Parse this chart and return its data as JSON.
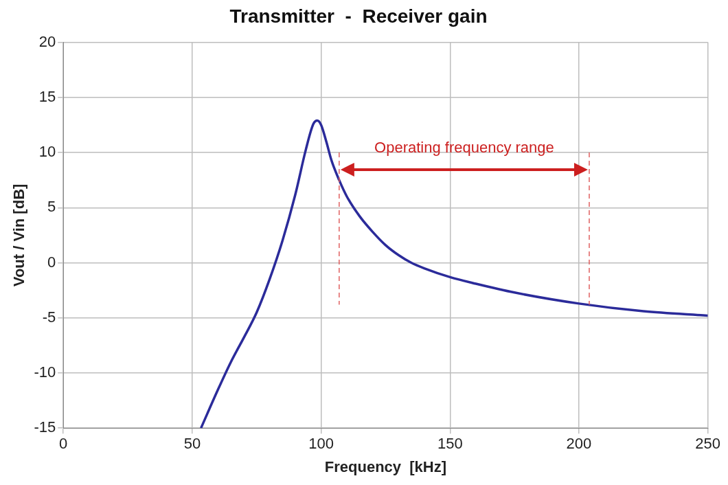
{
  "chart_data": {
    "type": "line",
    "title": "Transmitter  -  Receiver gain",
    "xlabel": "Frequency  [kHz]",
    "ylabel": "Vout / Vin [dB]",
    "series": [
      {
        "color": "#2b2b9a",
        "x": [
          53.4,
          60,
          65,
          70,
          75,
          80,
          85,
          90,
          94,
          97,
          98.5,
          100,
          102,
          104,
          107,
          110,
          115,
          120,
          125,
          130,
          135,
          140,
          150,
          160,
          175,
          200,
          225,
          250
        ],
        "values": [
          -15,
          -11.5,
          -9,
          -6.8,
          -4.5,
          -1.5,
          2,
          6.2,
          10.2,
          12.6,
          12.9,
          12.5,
          11,
          9.3,
          7.5,
          6,
          4.2,
          2.8,
          1.6,
          0.7,
          0,
          -0.5,
          -1.3,
          -1.9,
          -2.7,
          -3.7,
          -4.4,
          -4.8
        ]
      }
    ],
    "xlim": [
      0,
      250
    ],
    "xticks": [
      0,
      50,
      100,
      150,
      200,
      250
    ],
    "ylim": [
      -15,
      20
    ],
    "yticks": [
      -15,
      -10,
      -5,
      0,
      5,
      10,
      15,
      20
    ],
    "grid": true,
    "legend": false,
    "marker": "none",
    "line_style": "solid",
    "ref_lines": [
      {
        "axis": "x",
        "value": 107,
        "color": "#e06060",
        "line_style": "dashed"
      },
      {
        "axis": "x",
        "value": 204,
        "color": "#e06060",
        "line_style": "dashed"
      }
    ],
    "annotations": [
      "Operating frequency range"
    ]
  }
}
